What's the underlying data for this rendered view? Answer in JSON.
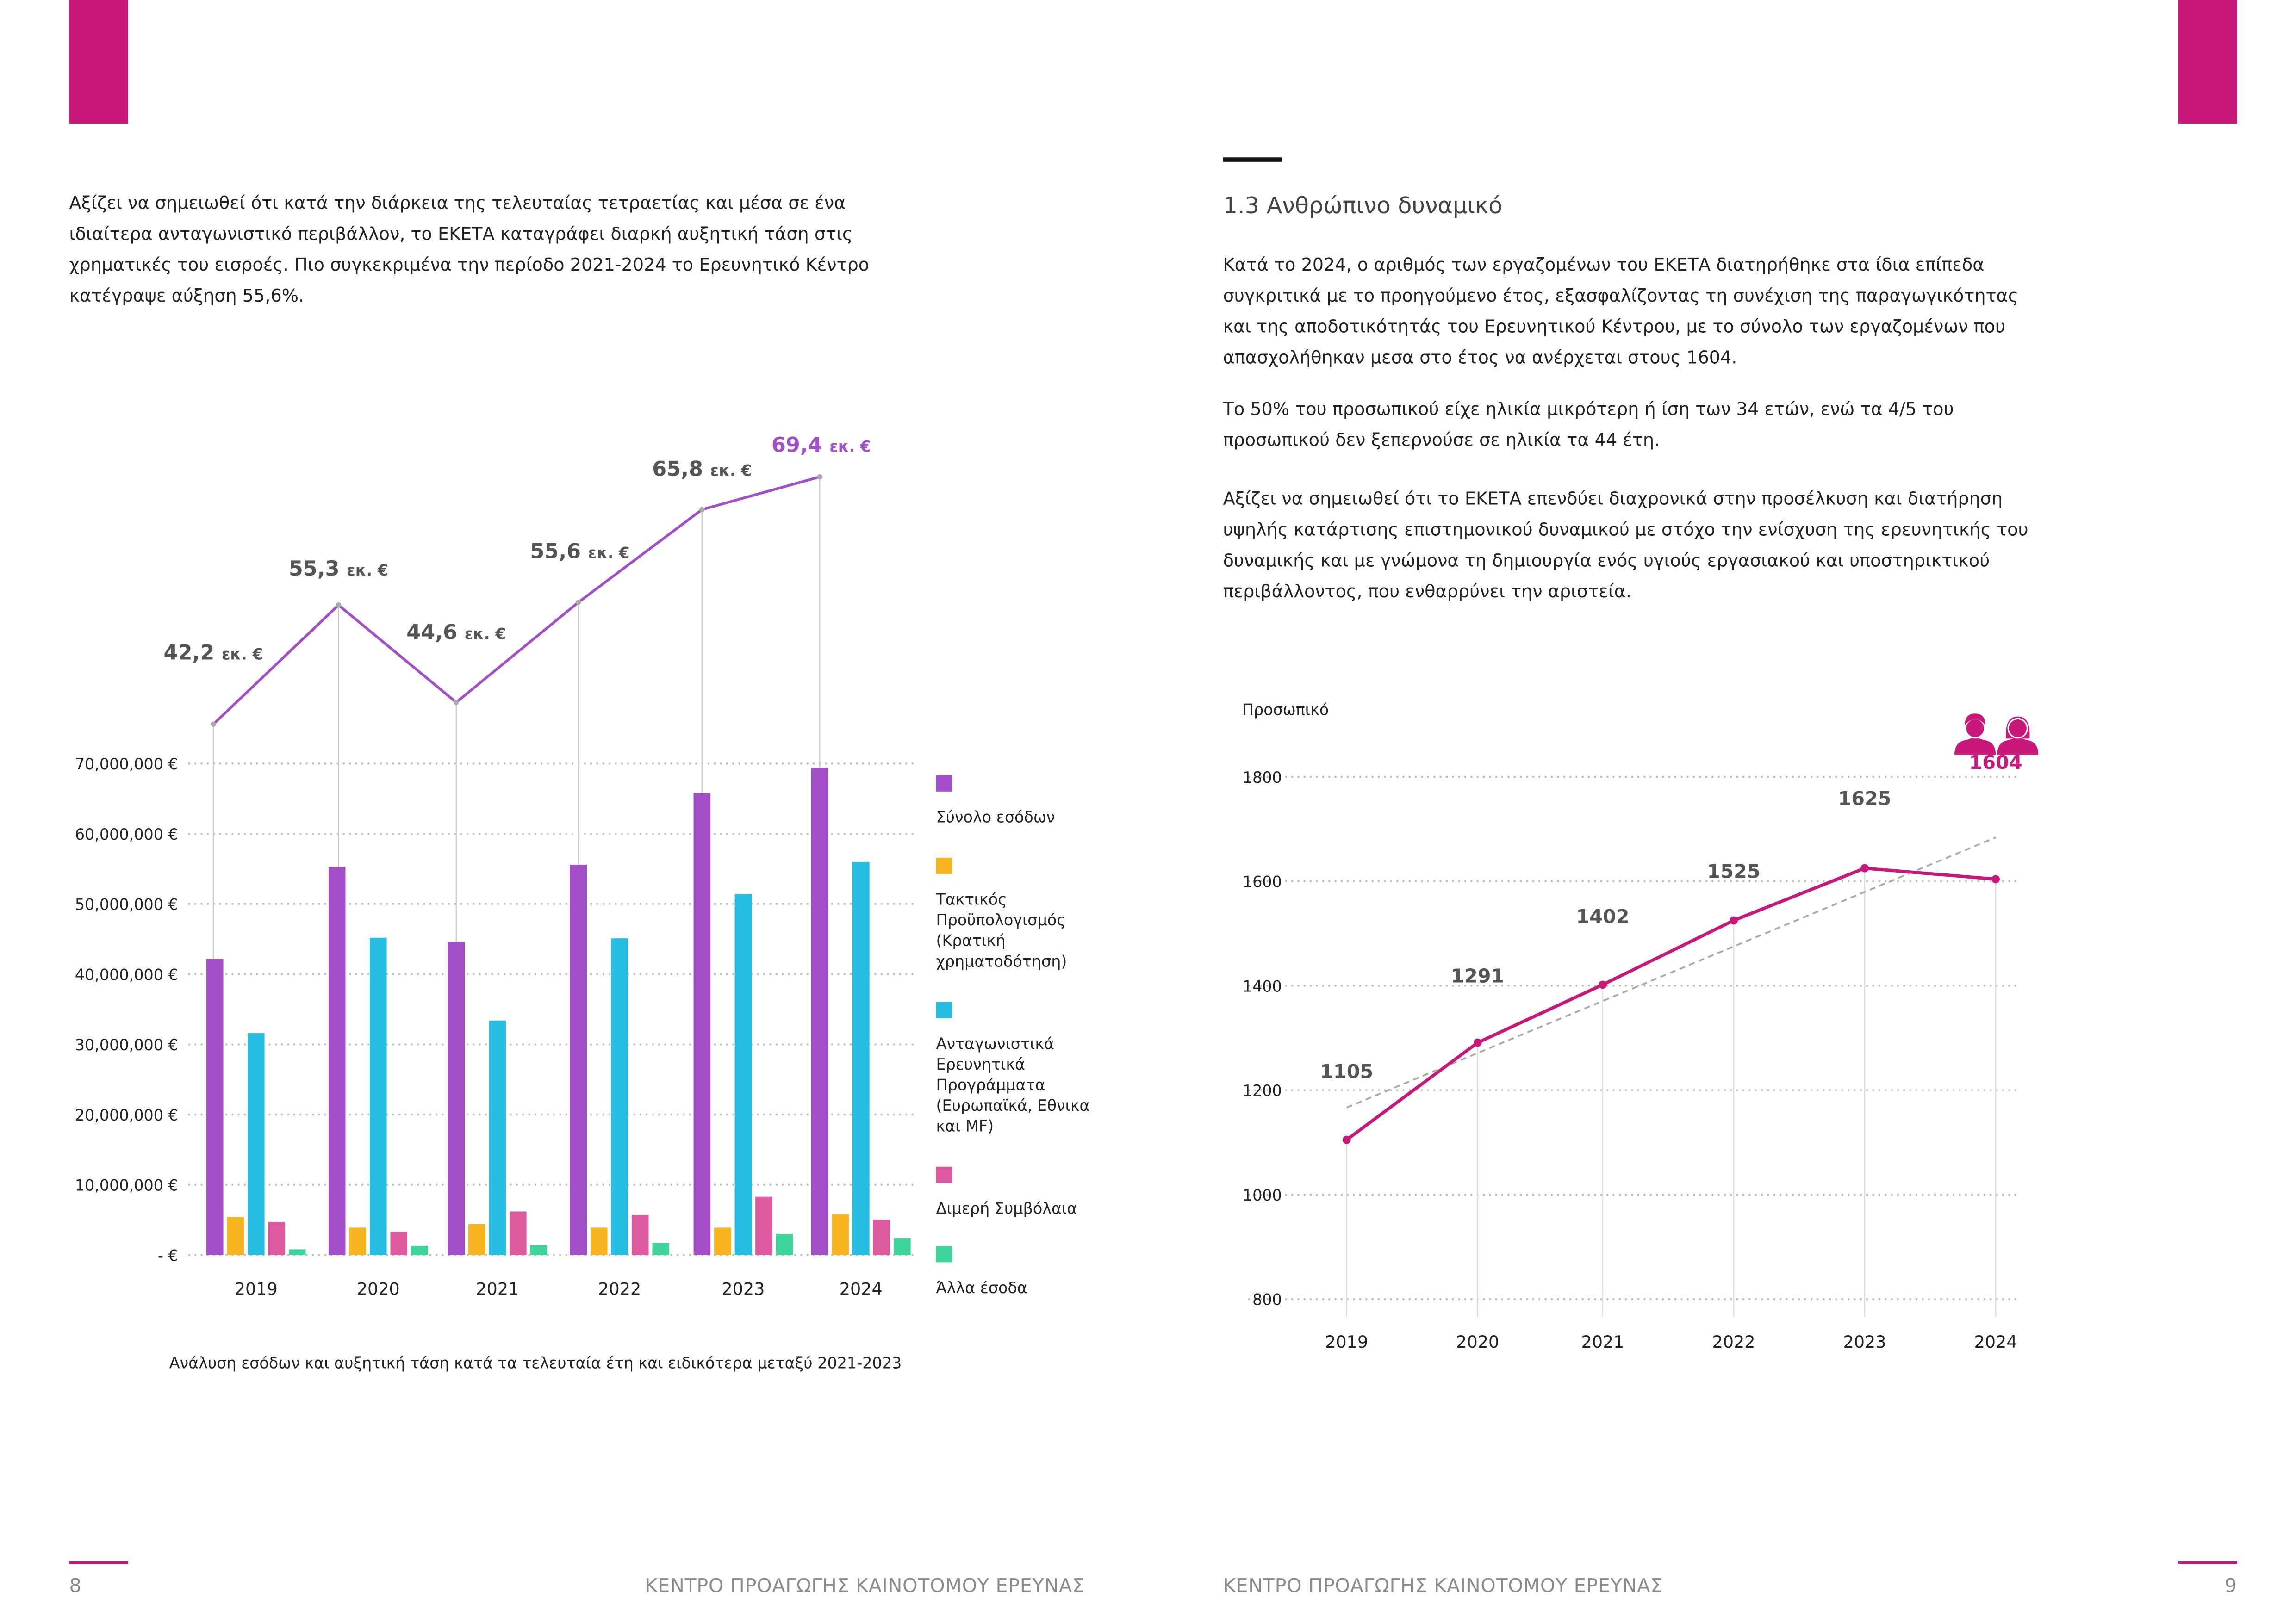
{
  "colors": {
    "accent": "#c8197a",
    "total": "#a24fc9",
    "budget": "#f7b521",
    "competitive": "#27bde3",
    "bilateral": "#de5aa0",
    "other": "#3dd59c",
    "footer_text": "#8a8a8a"
  },
  "left_page": {
    "paragraph": "Αξίζει να σημειωθεί ότι κατά την διάρκεια της τελευταίας τετραετίας και μέσα σε ένα ιδιαίτερα ανταγωνιστικό περιβάλλον, το ΕΚΕΤΑ καταγράφει διαρκή αυξητική τάση στις χρηματικές του εισροές. Πιο συγκεκριμένα την περίοδο 2021-2024 το Ερευνητικό Κέντρο κατέγραψε αύξηση 55,6%.",
    "caption": "Ανάλυση εσόδων και αυξητική τάση κατά τα τελευταία έτη και ειδικότερα μεταξύ 2021-2023",
    "page_number": "8",
    "footer": "ΚΕΝΤΡΟ ΠΡΟΑΓΩΓΗΣ ΚΑΙΝΟΤΟΜΟΥ ΕΡΕΥΝΑΣ"
  },
  "right_page": {
    "heading": "1.3 Ανθρώπινο δυναμικό",
    "paragraphs": [
      "Κατά το 2024, ο αριθμός των εργαζομένων του ΕΚΕΤΑ διατηρήθηκε στα ίδια επίπεδα συγκριτικά με το προηγούμενο έτος, εξασφαλίζοντας τη συνέχιση της παραγωγικότητας και της αποδοτικότητάς του Ερευνητικού Κέντρου, με το σύνολο των εργαζομένων που απασχολήθηκαν μεσα στο έτος να ανέρχεται στους 1604.",
      "Το 50% του προσωπικού είχε ηλικία μικρότερη ή ίση των 34 ετών, ενώ τα 4/5 του προσωπικού δεν ξεπερνούσε σε ηλικία τα 44 έτη.",
      "Αξίζει να σημειωθεί ότι το ΕΚΕΤΑ επενδύει διαχρονικά στην προσέλκυση και διατήρηση υψηλής κατάρτισης επιστημονικού δυναμικού με στόχο την ενίσχυση της ερευνητικής του δυναμικής και με γνώμονα τη δημιουργία ενός υγιούς εργασιακού και υποστηρικτικού περιβάλλοντος, που ενθαρρύνει την αριστεία."
    ],
    "page_number": "9",
    "footer": "ΚΕΝΤΡΟ ΠΡΟΑΓΩΓΗΣ ΚΑΙΝΟΤΟΜΟΥ ΕΡΕΥΝΑΣ",
    "icons": [
      "male-user-icon",
      "female-user-icon"
    ]
  },
  "chart_data": [
    {
      "type": "bar",
      "categories": [
        "2019",
        "2020",
        "2021",
        "2022",
        "2023",
        "2024"
      ],
      "yticks": [
        "- €",
        "10,000,000 €",
        "20,000,000 €",
        "30,000,000 €",
        "40,000,000 €",
        "50,000,000 €",
        "60,000,000 €",
        "70,000,000 €"
      ],
      "ylim": [
        0,
        70000000
      ],
      "grid": true,
      "legend_placement": "right",
      "series": [
        {
          "name": "Σύνολο εσόδων",
          "color": "#a24fc9",
          "values": [
            42200000,
            55300000,
            44600000,
            55600000,
            65800000,
            69400000
          ]
        },
        {
          "name": "Τακτικός Προϋπολογισμός (Κρατική χρηματοδότηση)",
          "color": "#f7b521",
          "values": [
            5400000,
            3900000,
            4400000,
            3900000,
            3900000,
            5800000
          ]
        },
        {
          "name": "Ανταγωνιστικά Ερευνητικά Προγράμματα (Ευρωπαϊκά, Εθνικα και MF)",
          "color": "#27bde3",
          "values": [
            31600000,
            45200000,
            33400000,
            45100000,
            51400000,
            56000000
          ]
        },
        {
          "name": "Διμερή Συμβόλαια",
          "color": "#de5aa0",
          "values": [
            4700000,
            3300000,
            6200000,
            5700000,
            8300000,
            5000000
          ]
        },
        {
          "name": "Άλλα έσοδα",
          "color": "#3dd59c",
          "values": [
            800000,
            1300000,
            1400000,
            1700000,
            3000000,
            2400000
          ]
        }
      ],
      "trend_line": {
        "color": "#a24fc9",
        "values": [
          42.2,
          55.3,
          44.6,
          55.6,
          65.8,
          69.4
        ],
        "labels": [
          "42,2",
          "55,3",
          "44,6",
          "55,6",
          "65,8",
          "69,4"
        ],
        "unit": "εκ. €"
      }
    },
    {
      "type": "line",
      "ylabel": "Προσωπικό",
      "categories": [
        "2019",
        "2020",
        "2021",
        "2022",
        "2023",
        "2024"
      ],
      "values": [
        1105,
        1291,
        1402,
        1525,
        1625,
        1604
      ],
      "labels": [
        "1105",
        "1291",
        "1402",
        "1525",
        "1625",
        "1604"
      ],
      "yticks": [
        "800",
        "1000",
        "1200",
        "1400",
        "1600",
        "1800"
      ],
      "ylim": [
        800,
        1800
      ],
      "grid": true,
      "color": "#c8197a",
      "linear_trendline": true
    }
  ]
}
